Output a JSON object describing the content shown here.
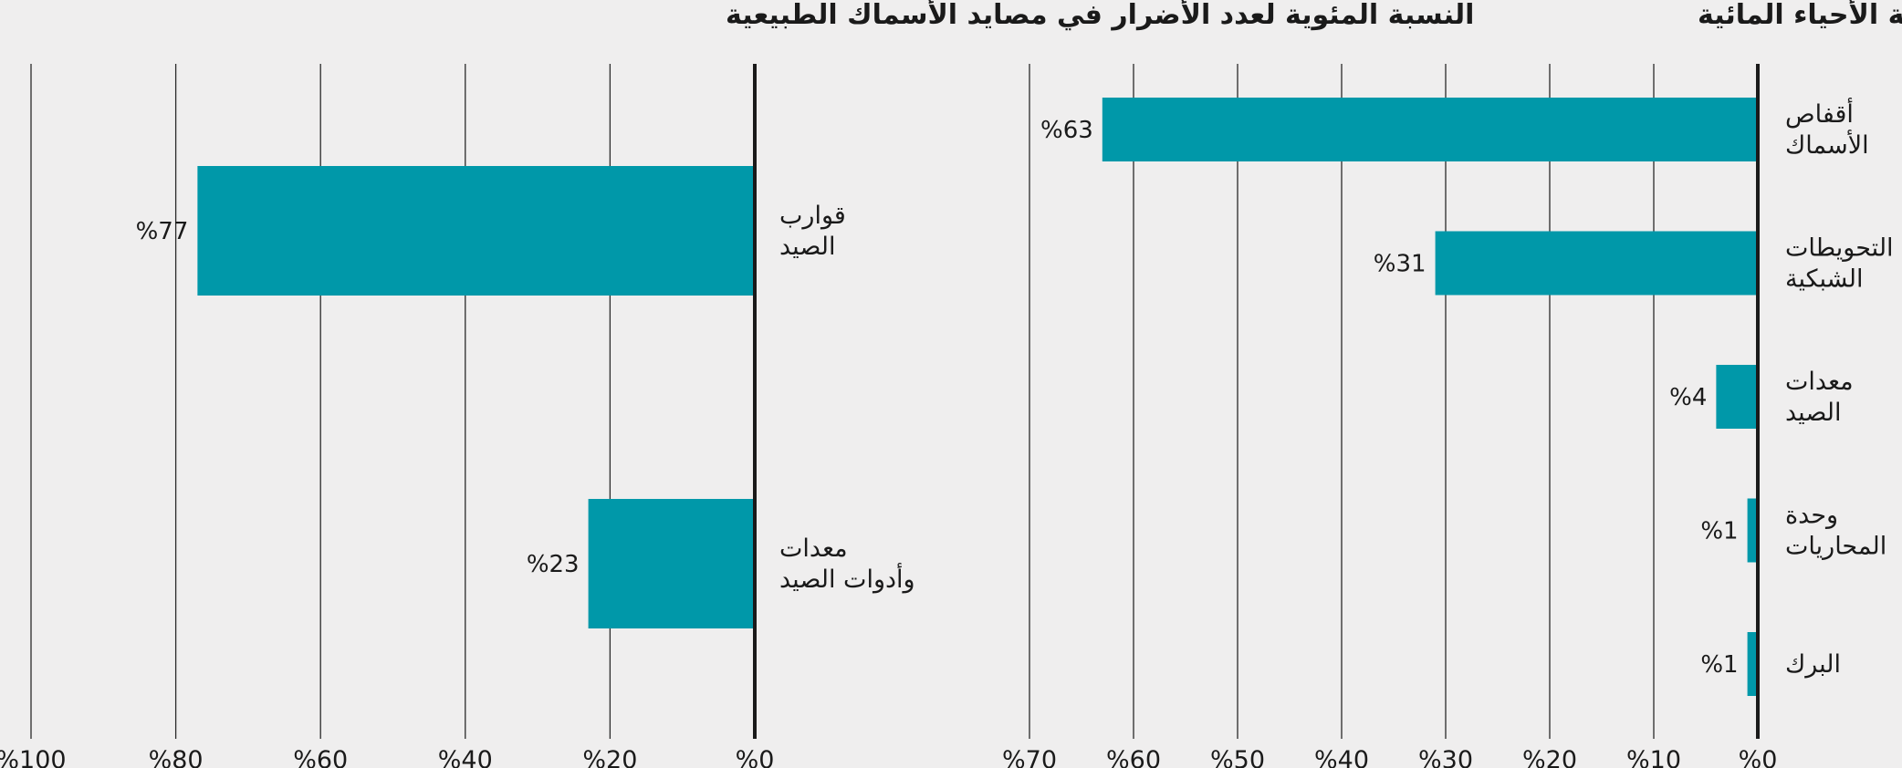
{
  "chart_data": [
    {
      "type": "bar",
      "orientation": "horizontal",
      "direction": "right-to-left",
      "title": "النسبة المئوية لعدد الأضرار في تربية الأحياء المائية",
      "categories": [
        [
          "أقفاص",
          "الأسماك"
        ],
        [
          "التحويطات",
          "الشبكية"
        ],
        [
          "معدات",
          "الصيد"
        ],
        [
          "وحدة",
          "المحاريات"
        ],
        [
          "البرك"
        ]
      ],
      "values": [
        63,
        31,
        4,
        1,
        1
      ],
      "value_labels": [
        "%63",
        "%31",
        "%4",
        "%1",
        "%1"
      ],
      "xlim": [
        0,
        70
      ],
      "ticks": [
        0,
        10,
        20,
        30,
        40,
        50,
        60,
        70
      ],
      "tick_labels": [
        "%0",
        "%10",
        "%20",
        "%30",
        "%40",
        "%50",
        "%60",
        "%70"
      ],
      "grid": true,
      "bar_color": "#0098a9"
    },
    {
      "type": "bar",
      "orientation": "horizontal",
      "direction": "right-to-left",
      "title": "النسبة المئوية لعدد الأضرار في مصايد الأسماك الطبيعية",
      "categories": [
        [
          "قوارب",
          "الصيد"
        ],
        [
          "معدات",
          "وأدوات الصيد"
        ]
      ],
      "values": [
        77,
        23
      ],
      "value_labels": [
        "%77",
        "%23"
      ],
      "xlim": [
        0,
        100
      ],
      "ticks": [
        0,
        20,
        40,
        60,
        80,
        100
      ],
      "tick_labels": [
        "%0",
        "%20",
        "%40",
        "%60",
        "%80",
        "%100"
      ],
      "grid": true,
      "bar_color": "#0098a9"
    }
  ]
}
